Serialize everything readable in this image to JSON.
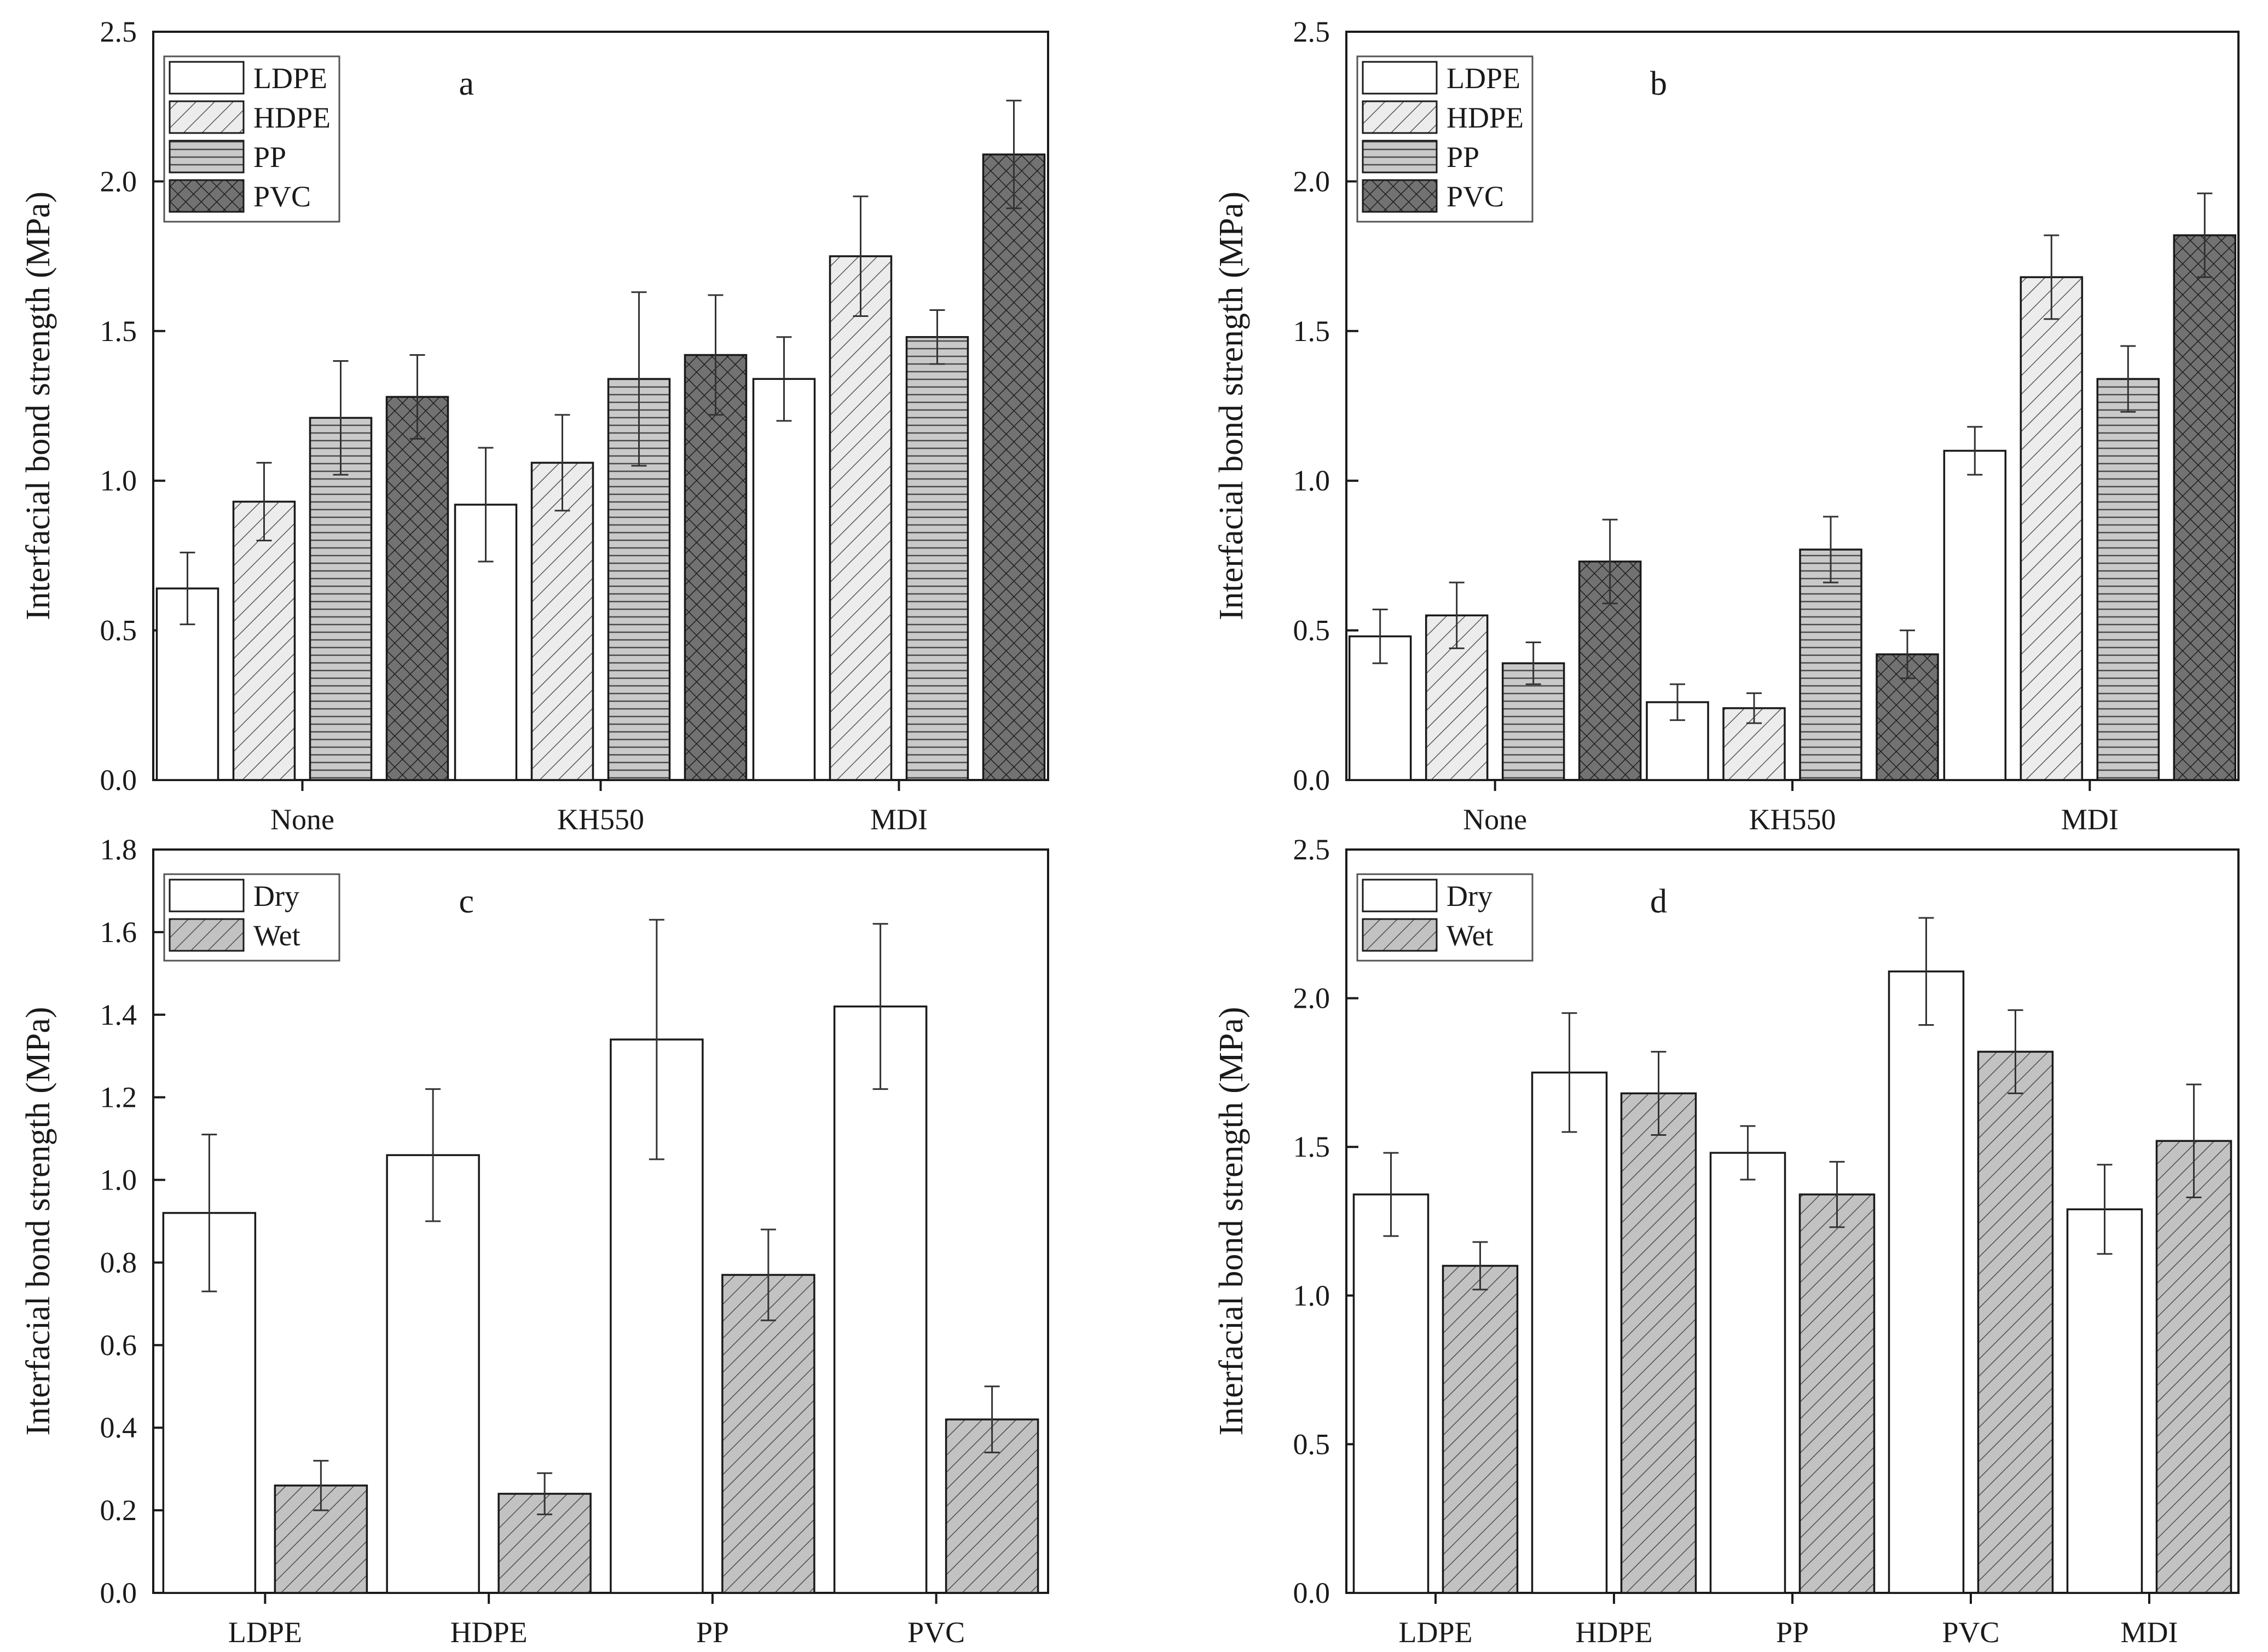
{
  "colors": {
    "axis": "#1a1a1a",
    "LDPE": "#ffffff",
    "HDPE": "#e6e6e6",
    "PP": "#c4c4c4",
    "PVC": "#6f6f6f",
    "Dry": "#ffffff",
    "Wet": "#c0c0c0"
  },
  "chart_data": [
    {
      "id": "a",
      "type": "bar",
      "panel_label": "a",
      "ylabel": "Interfacial bond strength (MPa)",
      "xlabel": "",
      "ylim": [
        0,
        2.5
      ],
      "yticks": [
        "0.0",
        "0.5",
        "1.0",
        "1.5",
        "2.0",
        "2.5"
      ],
      "categories": [
        "None",
        "KH550",
        "MDI"
      ],
      "legend_position": "top-left",
      "series": [
        {
          "name": "LDPE",
          "pattern": "white",
          "values": [
            0.64,
            0.92,
            1.34
          ],
          "errors": [
            0.12,
            0.19,
            0.14
          ]
        },
        {
          "name": "HDPE",
          "pattern": "hatch-light",
          "values": [
            0.93,
            1.06,
            1.75
          ],
          "errors": [
            0.13,
            0.16,
            0.2
          ]
        },
        {
          "name": "PP",
          "pattern": "horizontal",
          "values": [
            1.21,
            1.34,
            1.48
          ],
          "errors": [
            0.19,
            0.29,
            0.09
          ]
        },
        {
          "name": "PVC",
          "pattern": "crosshatch",
          "values": [
            1.28,
            1.42,
            2.09
          ],
          "errors": [
            0.14,
            0.2,
            0.18
          ]
        }
      ]
    },
    {
      "id": "b",
      "type": "bar",
      "panel_label": "b",
      "ylabel": "Interfacial bond strength (MPa)",
      "xlabel": "",
      "ylim": [
        0,
        2.5
      ],
      "yticks": [
        "0.0",
        "0.5",
        "1.0",
        "1.5",
        "2.0",
        "2.5"
      ],
      "categories": [
        "None",
        "KH550",
        "MDI"
      ],
      "legend_position": "top-left",
      "series": [
        {
          "name": "LDPE",
          "pattern": "white",
          "values": [
            0.48,
            0.26,
            1.1
          ],
          "errors": [
            0.09,
            0.06,
            0.08
          ]
        },
        {
          "name": "HDPE",
          "pattern": "hatch-light",
          "values": [
            0.55,
            0.24,
            1.68
          ],
          "errors": [
            0.11,
            0.05,
            0.14
          ]
        },
        {
          "name": "PP",
          "pattern": "horizontal",
          "values": [
            0.39,
            0.77,
            1.34
          ],
          "errors": [
            0.07,
            0.11,
            0.11
          ]
        },
        {
          "name": "PVC",
          "pattern": "crosshatch",
          "values": [
            0.73,
            0.42,
            1.82
          ],
          "errors": [
            0.14,
            0.08,
            0.14
          ]
        }
      ]
    },
    {
      "id": "c",
      "type": "bar",
      "panel_label": "c",
      "ylabel": "Interfacial bond strength (MPa)",
      "xlabel": "",
      "ylim": [
        0,
        1.8
      ],
      "yticks": [
        "0.0",
        "0.2",
        "0.4",
        "0.6",
        "0.8",
        "1.0",
        "1.2",
        "1.4",
        "1.6",
        "1.8"
      ],
      "categories": [
        "LDPE",
        "HDPE",
        "PP",
        "PVC"
      ],
      "legend_position": "top-left",
      "series": [
        {
          "name": "Dry",
          "pattern": "white",
          "values": [
            0.92,
            1.06,
            1.34,
            1.42
          ],
          "errors": [
            0.19,
            0.16,
            0.29,
            0.2
          ]
        },
        {
          "name": "Wet",
          "pattern": "hatch-gray",
          "values": [
            0.26,
            0.24,
            0.77,
            0.42
          ],
          "errors": [
            0.06,
            0.05,
            0.11,
            0.08
          ]
        }
      ]
    },
    {
      "id": "d",
      "type": "bar",
      "panel_label": "d",
      "ylabel": "Interfacial bond strength (MPa)",
      "xlabel": "",
      "ylim": [
        0,
        2.5
      ],
      "yticks": [
        "0.0",
        "0.5",
        "1.0",
        "1.5",
        "2.0",
        "2.5"
      ],
      "categories": [
        "LDPE",
        "HDPE",
        "PP",
        "PVC",
        "MDI"
      ],
      "legend_position": "top-left",
      "series": [
        {
          "name": "Dry",
          "pattern": "white",
          "values": [
            1.34,
            1.75,
            1.48,
            2.09,
            1.29
          ],
          "errors": [
            0.14,
            0.2,
            0.09,
            0.18,
            0.15
          ]
        },
        {
          "name": "Wet",
          "pattern": "hatch-gray",
          "values": [
            1.1,
            1.68,
            1.34,
            1.82,
            1.52
          ],
          "errors": [
            0.08,
            0.14,
            0.11,
            0.14,
            0.19
          ]
        }
      ]
    }
  ]
}
